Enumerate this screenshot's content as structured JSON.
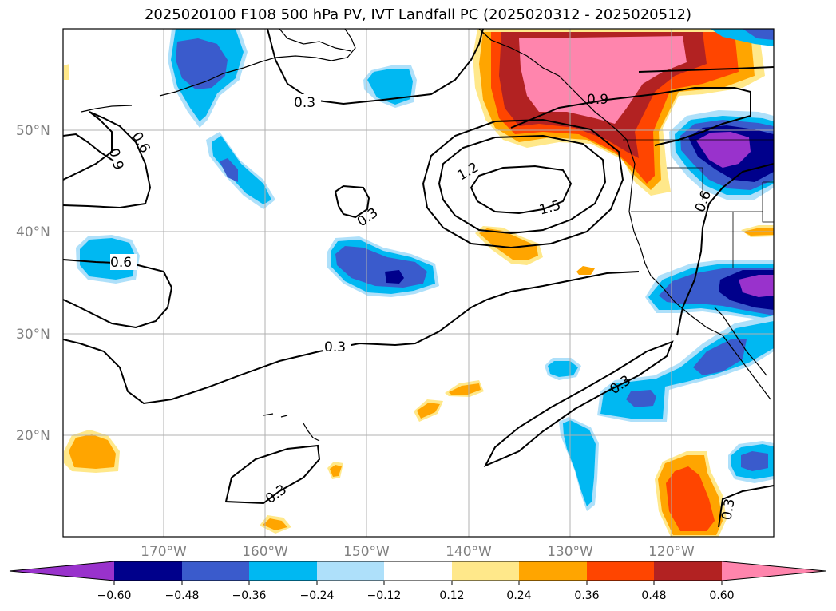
{
  "title": "2025020100 F108 500 hPa PV, IVT Landfall PC (2025020312 - 2025020512)",
  "latitude_labels": [
    "50°N",
    "40°N",
    "30°N",
    "20°N"
  ],
  "longitude_labels": [
    "170°W",
    "160°W",
    "150°W",
    "140°W",
    "130°W",
    "120°W"
  ],
  "contour_labels": [
    "0.3",
    "0.3",
    "0.3",
    "0.3",
    "0.3",
    "0.3",
    "0.6",
    "0.6",
    "0.6",
    "0.9",
    "0.9",
    "1.2",
    "1.5"
  ],
  "colorbar": {
    "tick_labels": [
      "−0.60",
      "−0.48",
      "−0.36",
      "−0.24",
      "−0.12",
      "0.12",
      "0.24",
      "0.36",
      "0.48",
      "0.60"
    ],
    "colors": [
      "#9932cc",
      "#00008b",
      "#3a5bcc",
      "#00b8f2",
      "#aee0fa",
      "#ffffff",
      "#ffe88a",
      "#ffa500",
      "#ff4500",
      "#b22222",
      "#ff85ad"
    ]
  },
  "shading_colors": {
    "neg_lightest": "#aee0fa",
    "neg_light": "#00b8f2",
    "neg_mid": "#3a5bcc",
    "neg_dark": "#00008b",
    "neg_darkest": "#9932cc",
    "pos_lightest": "#ffe88a",
    "pos_light": "#ffa500",
    "pos_mid": "#ff4500",
    "pos_dark": "#b22222",
    "pos_darkest": "#ff85ad"
  }
}
